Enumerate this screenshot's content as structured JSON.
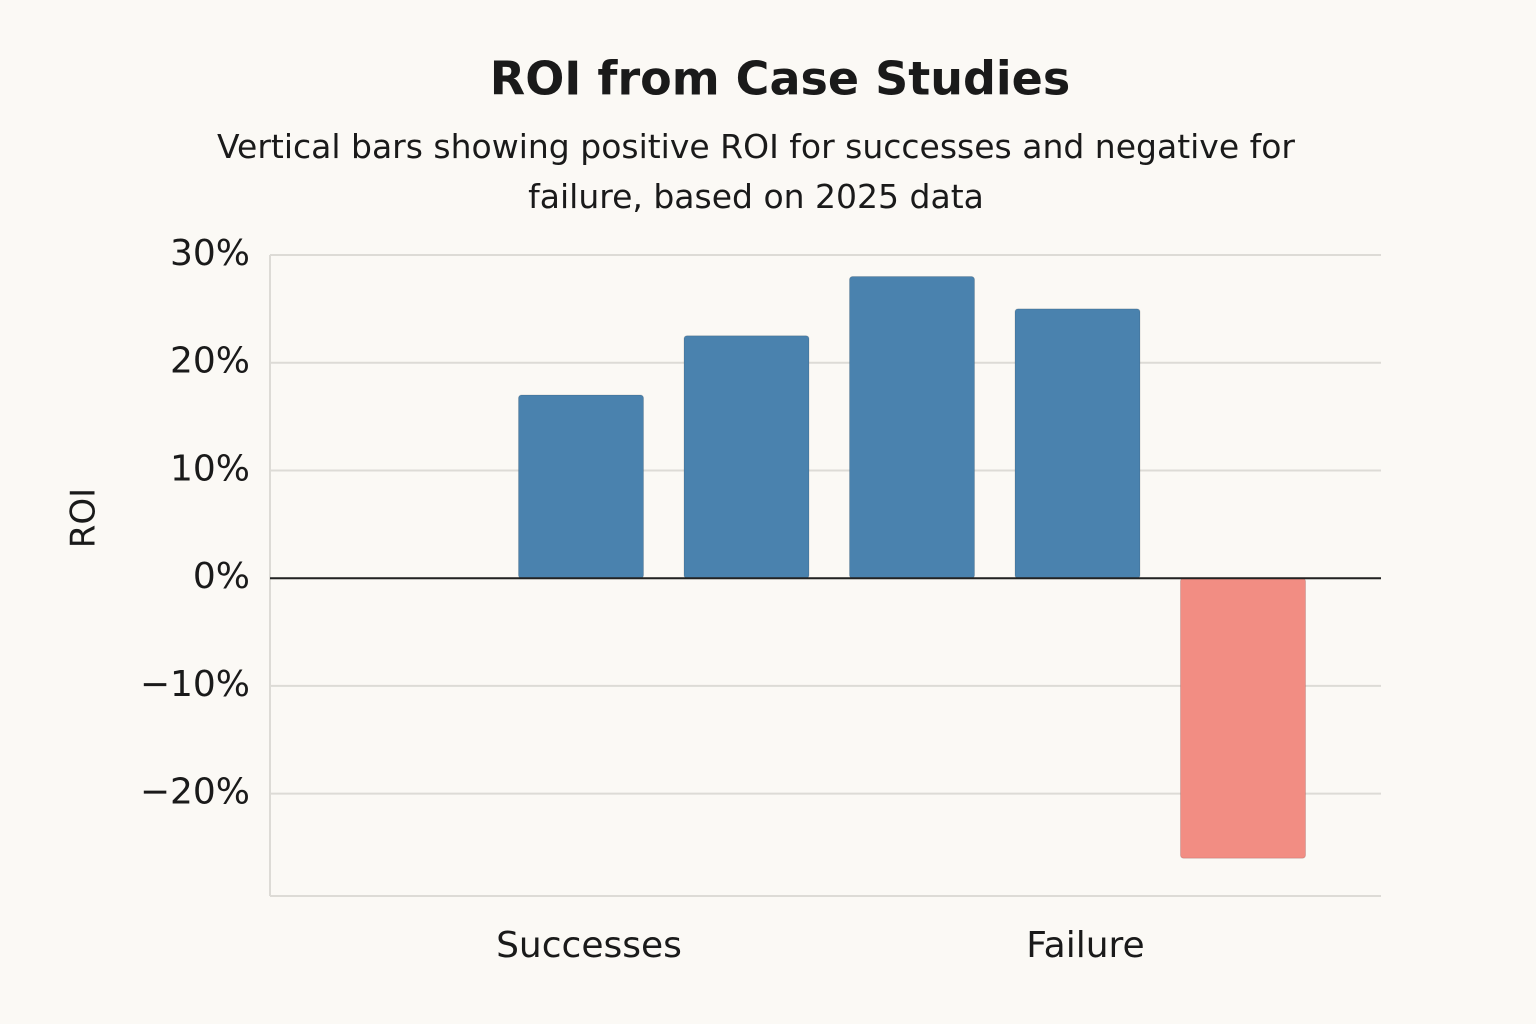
{
  "chart_data": {
    "type": "bar",
    "title": "ROI from Case Studies",
    "subtitle": "Vertical bars showing positive ROI for successes and negative for failure, based on 2025 data",
    "ylabel": "ROI",
    "categories": [
      "Successes",
      null,
      null,
      "Failure",
      null
    ],
    "values": [
      17,
      22.5,
      28,
      25,
      -26
    ],
    "colors": [
      "#4a82ae",
      "#4a82ae",
      "#4a82ae",
      "#4a82ae",
      "#f28d83"
    ],
    "ylim": [
      -29.5,
      30
    ],
    "yticks": [
      {
        "value": 30,
        "label": "30%"
      },
      {
        "value": 20,
        "label": "20%"
      },
      {
        "value": 10,
        "label": "10%"
      },
      {
        "value": 0,
        "label": "0%"
      },
      {
        "value": -10,
        "label": "−10%"
      },
      {
        "value": -20,
        "label": "−20%"
      }
    ],
    "grid": true
  }
}
